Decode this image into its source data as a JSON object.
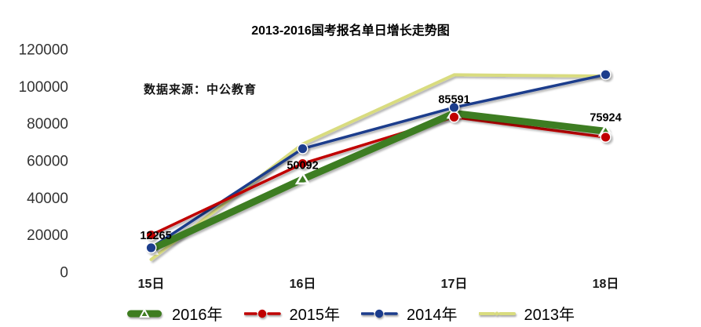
{
  "chart_data": {
    "type": "line",
    "title": "2013-2016国考报名单日增长走势图",
    "annotation": "数据来源：中公教育",
    "categories": [
      "15日",
      "16日",
      "17日",
      "18日"
    ],
    "series": [
      {
        "name": "2016年",
        "color": "#3E7D20",
        "marker": "triangle-white",
        "line_width": 9,
        "values": [
          12265,
          50092,
          85591,
          75924
        ],
        "labeled": true
      },
      {
        "name": "2015年",
        "color": "#C00000",
        "marker": "circle",
        "line_width": 3.5,
        "values": [
          20000,
          58500,
          83500,
          72700
        ],
        "labeled": false
      },
      {
        "name": "2014年",
        "color": "#1B3C8C",
        "marker": "circle",
        "line_width": 3.5,
        "values": [
          13100,
          66500,
          88700,
          106400
        ],
        "labeled": false
      },
      {
        "name": "2013年",
        "color": "#D9DC7F",
        "marker": "small-dot",
        "line_width": 4,
        "values": [
          6800,
          69000,
          106300,
          105600
        ],
        "labeled": false
      }
    ],
    "data_labels": [
      "12265",
      "50092",
      "85591",
      "75924"
    ],
    "ylim": [
      0,
      120000
    ],
    "ytick_step": 20000,
    "yticks": [
      "0",
      "20000",
      "40000",
      "60000",
      "80000",
      "100000",
      "120000"
    ],
    "grid": false,
    "legend_position": "bottom",
    "axis_color": "#000000",
    "tick_label_color": "#333333",
    "shadow": true
  }
}
